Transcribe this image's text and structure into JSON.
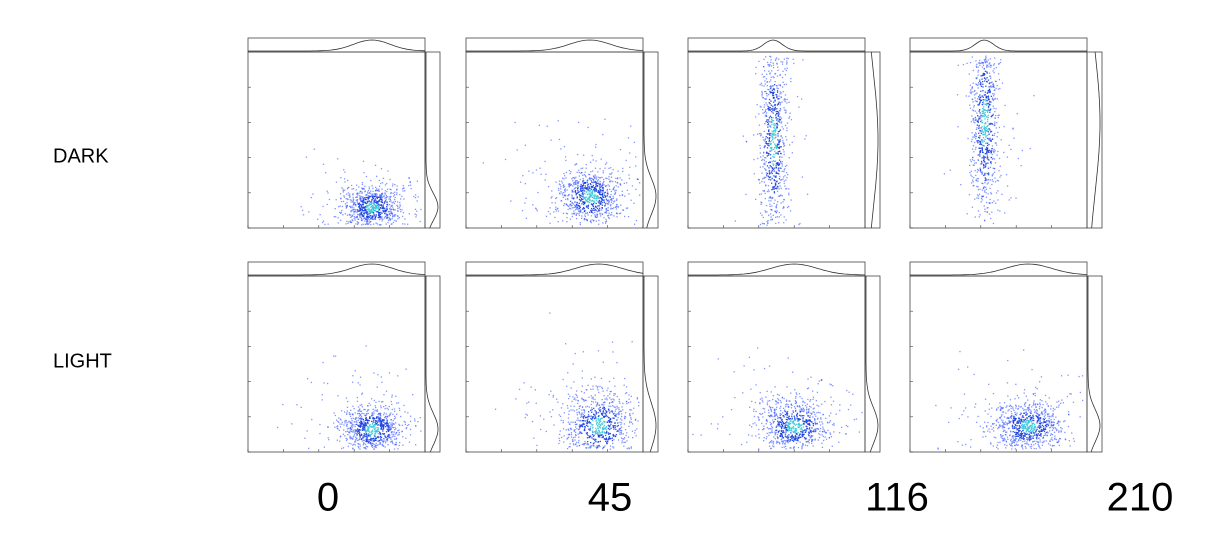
{
  "rows": [
    {
      "label": "DARK"
    },
    {
      "label": "LIGHT"
    }
  ],
  "columns": [
    {
      "label": "0"
    },
    {
      "label": "45"
    },
    {
      "label": "116"
    },
    {
      "label": "210"
    }
  ]
}
